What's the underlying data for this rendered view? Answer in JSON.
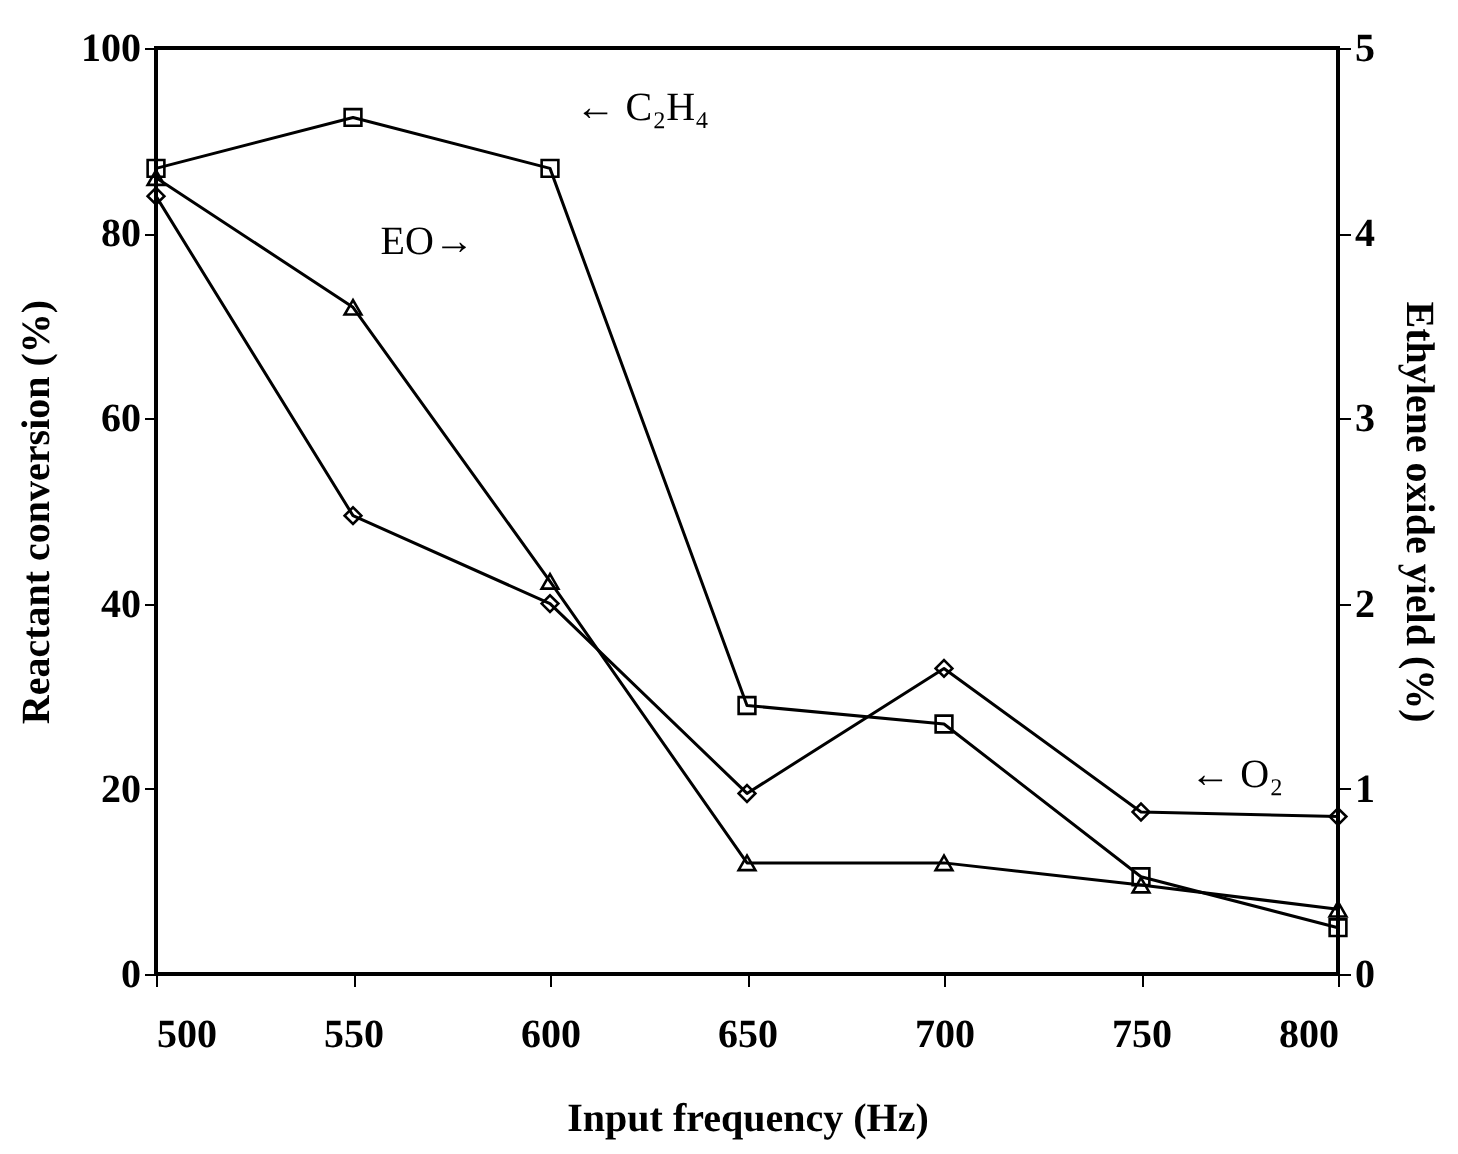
{
  "chart_data": {
    "type": "line",
    "xlabel": "Input frequency (Hz)",
    "ylabel": "Reactant conversion (%)",
    "y2label": "Ethylene oxide yield (%)",
    "x": [
      500,
      550,
      600,
      650,
      700,
      750,
      800
    ],
    "series": [
      {
        "color": "#000000",
        "marker": "square",
        "values": [
          87,
          92.5,
          87,
          29,
          27,
          10.5,
          5
        ]
      },
      {
        "color": "#000000",
        "marker": "diamond",
        "values": [
          84,
          49.5,
          40,
          19.5,
          33,
          17.5,
          17
        ]
      },
      {
        "color": "#000000",
        "marker": "triangle",
        "axis": "y2",
        "values": [
          4.3,
          3.6,
          2.12,
          0.6,
          0.6,
          0.48,
          0.35
        ]
      }
    ],
    "xlim": [
      500,
      800
    ],
    "xticks": [
      500,
      550,
      600,
      650,
      700,
      750,
      800
    ],
    "ylim": [
      0,
      100
    ],
    "yticks": [
      0,
      20,
      40,
      60,
      80,
      100
    ],
    "y2lim": [
      0,
      5
    ],
    "y2ticks": [
      0,
      1,
      2,
      3,
      4,
      5
    ],
    "grid": false,
    "line_style": "solid",
    "annotations": [
      "← C₂H₄",
      "EO→",
      "← O₂"
    ]
  }
}
